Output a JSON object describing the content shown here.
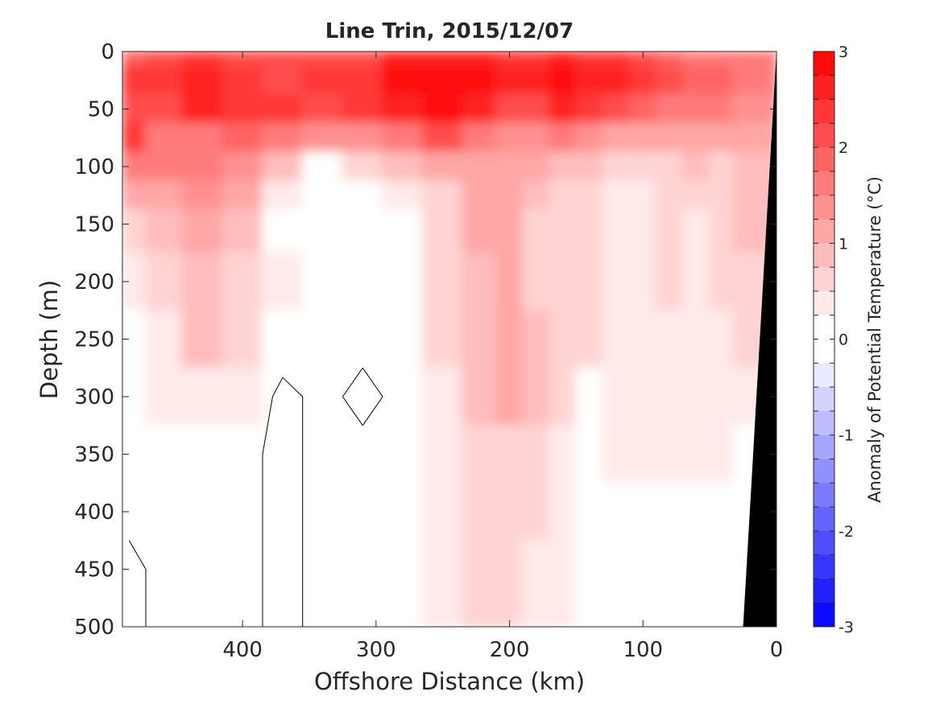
{
  "chart_data": {
    "type": "heatmap",
    "title": "Line Trin, 2015/12/07",
    "xlabel": "Offshore Distance (km)",
    "ylabel": "Depth (m)",
    "xlim": [
      490,
      0
    ],
    "ylim": [
      0,
      500
    ],
    "x_reversed": true,
    "y_reversed": true,
    "x_ticks": [
      400,
      300,
      200,
      100,
      0
    ],
    "y_ticks": [
      0,
      50,
      100,
      150,
      200,
      250,
      300,
      350,
      400,
      450,
      500
    ],
    "colorbar": {
      "label": "Anomaly of Potential Temperature (°C)",
      "range": [
        -3,
        3
      ],
      "levels": 24,
      "ticks": [
        3,
        2,
        1,
        0,
        -1,
        -2,
        -3
      ],
      "colormap": "blue-white-red",
      "low_color": "#0000ff",
      "high_color": "#ff0000"
    },
    "bathymetry_color": "#000000",
    "zero_contour_color": "#000000",
    "grid": false,
    "x_sample": [
      485,
      460,
      430,
      400,
      370,
      340,
      310,
      280,
      250,
      220,
      200,
      180,
      160,
      140,
      120,
      100,
      80,
      60,
      40,
      25
    ],
    "y_sample": [
      0,
      25,
      50,
      75,
      100,
      125,
      150,
      200,
      250,
      300,
      350,
      400,
      450,
      500
    ],
    "anomaly": [
      [
        1.9,
        2.1,
        2.3,
        2.1,
        2.0,
        2.0,
        2.2,
        2.5,
        2.6,
        2.5,
        2.3,
        2.3,
        2.5,
        2.4,
        2.3,
        2.0,
        1.8,
        1.6,
        1.7,
        1.6
      ],
      [
        2.3,
        2.3,
        2.5,
        2.4,
        2.2,
        2.3,
        2.4,
        2.8,
        3.0,
        2.9,
        2.6,
        2.6,
        2.8,
        2.7,
        2.5,
        2.3,
        2.0,
        1.8,
        1.8,
        1.6
      ],
      [
        2.2,
        2.0,
        2.6,
        2.4,
        2.3,
        2.2,
        2.3,
        2.5,
        2.8,
        2.6,
        2.2,
        2.2,
        2.5,
        2.4,
        2.1,
        1.9,
        1.7,
        1.6,
        1.5,
        1.4
      ],
      [
        2.4,
        1.6,
        1.7,
        1.9,
        1.6,
        1.3,
        1.4,
        1.6,
        2.0,
        1.6,
        1.3,
        1.4,
        1.5,
        1.3,
        1.1,
        1.0,
        1.0,
        1.2,
        1.2,
        1.1
      ],
      [
        1.5,
        1.6,
        1.7,
        1.3,
        0.9,
        0.2,
        0.5,
        0.8,
        1.2,
        1.2,
        1.1,
        1.0,
        0.9,
        0.9,
        0.6,
        0.5,
        0.6,
        0.8,
        0.7,
        0.9
      ],
      [
        1.0,
        1.1,
        1.3,
        1.0,
        0.4,
        0.0,
        0.1,
        0.4,
        0.7,
        1.0,
        1.0,
        0.8,
        0.6,
        0.5,
        0.3,
        0.3,
        0.5,
        0.5,
        0.6,
        0.9
      ],
      [
        0.6,
        0.9,
        1.1,
        0.8,
        0.2,
        0.1,
        0.1,
        0.1,
        0.5,
        1.0,
        1.0,
        0.7,
        0.5,
        0.5,
        0.3,
        0.3,
        0.5,
        0.3,
        0.5,
        0.8
      ],
      [
        0.3,
        0.6,
        0.9,
        0.7,
        0.3,
        0.1,
        0.1,
        0.1,
        0.5,
        0.9,
        1.1,
        0.7,
        0.5,
        0.5,
        0.3,
        0.4,
        0.5,
        0.3,
        0.5,
        0.6
      ],
      [
        0.1,
        0.4,
        0.8,
        0.5,
        0.2,
        0.1,
        0.1,
        0.1,
        0.5,
        0.9,
        1.1,
        0.8,
        0.5,
        0.5,
        0.3,
        0.4,
        0.4,
        0.3,
        0.4,
        0.5
      ],
      [
        0.1,
        0.3,
        0.4,
        0.3,
        -0.1,
        0.1,
        -0.1,
        0.1,
        0.4,
        0.8,
        1.0,
        0.8,
        0.5,
        0.1,
        0.3,
        0.4,
        0.3,
        0.3,
        0.3,
        0.4
      ],
      [
        0.1,
        0.1,
        0.2,
        0.1,
        -0.1,
        0.1,
        0.1,
        0.1,
        0.4,
        0.7,
        0.7,
        0.6,
        0.4,
        0.1,
        0.3,
        0.3,
        0.3,
        0.3,
        0.3,
        0.1
      ],
      [
        0.1,
        0.1,
        0.1,
        0.1,
        -0.1,
        0.1,
        0.1,
        0.1,
        0.3,
        0.6,
        0.6,
        0.5,
        0.3,
        0.1,
        0.2,
        0.2,
        0.2,
        0.2,
        0.2,
        0.1
      ],
      [
        -0.1,
        0.1,
        0.1,
        0.1,
        -0.1,
        0.1,
        0.1,
        0.1,
        0.3,
        0.6,
        0.6,
        0.4,
        0.3,
        0.1,
        0.1,
        0.1,
        0.2,
        0.2,
        0.2,
        0.1
      ],
      [
        -0.1,
        0.1,
        0.1,
        0.1,
        -0.1,
        0.1,
        0.1,
        0.2,
        0.4,
        0.6,
        0.6,
        0.3,
        0.3,
        0.1,
        0.1,
        0.1,
        0.2,
        0.2,
        0.1,
        0.1
      ]
    ],
    "bathymetry_depth_at_edge_km": [
      [
        25,
        500
      ],
      [
        0,
        0
      ]
    ]
  }
}
